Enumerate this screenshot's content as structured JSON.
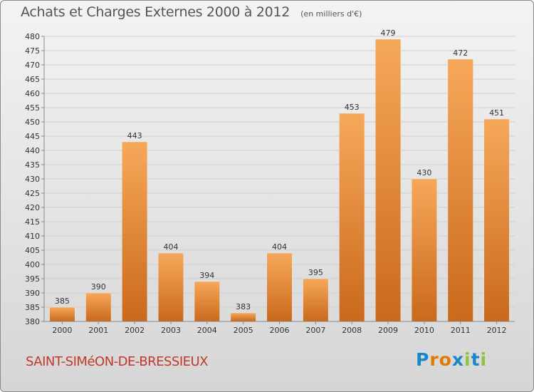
{
  "header": {
    "title": "Achats et Charges Externes 2000 à 2012",
    "unit": "(en milliers d'€)"
  },
  "footer": {
    "commune": "SAINT-SIMéON-DE-BRESSIEUX",
    "brand": "Proxiti",
    "brand_colors": [
      "#1b86c7",
      "#e07b00",
      "#e07b00",
      "#1b86c7",
      "#8cc63f",
      "#1b86c7",
      "#8cc63f"
    ]
  },
  "colors": {
    "bar_light": "#f7a85a",
    "bar_dark": "#c9691c",
    "grid": "#cfcfcf",
    "axis": "#8a8a8a"
  },
  "chart_data": {
    "type": "bar",
    "categories": [
      "2000",
      "2001",
      "2002",
      "2003",
      "2004",
      "2005",
      "2006",
      "2007",
      "2008",
      "2009",
      "2010",
      "2011",
      "2012"
    ],
    "values": [
      385,
      390,
      443,
      404,
      394,
      383,
      404,
      395,
      453,
      479,
      430,
      472,
      451
    ],
    "ylim": [
      380,
      480
    ],
    "ytick_step": 5,
    "grid": true
  }
}
